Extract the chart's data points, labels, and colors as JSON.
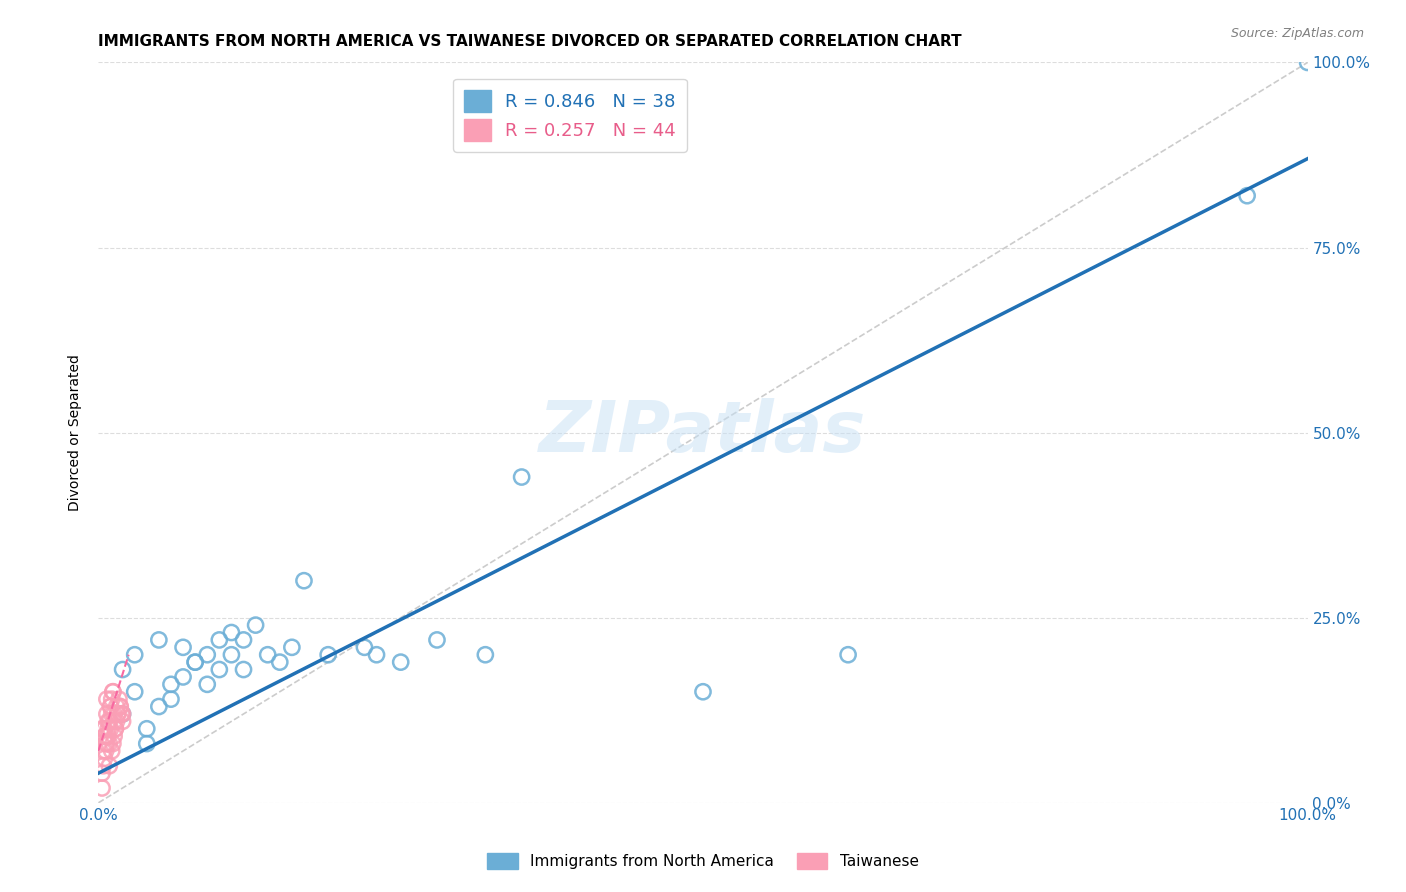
{
  "title": "IMMIGRANTS FROM NORTH AMERICA VS TAIWANESE DIVORCED OR SEPARATED CORRELATION CHART",
  "source": "Source: ZipAtlas.com",
  "xlabel": "",
  "ylabel": "Divorced or Separated",
  "xlim": [
    0.0,
    1.0
  ],
  "ylim": [
    0.0,
    1.0
  ],
  "ytick_positions": [
    0.0,
    0.25,
    0.5,
    0.75,
    1.0
  ],
  "watermark": "ZIPatlas",
  "blue_R": 0.846,
  "blue_N": 38,
  "pink_R": 0.257,
  "pink_N": 44,
  "blue_color": "#6baed6",
  "pink_color": "#fa9fb5",
  "blue_line_color": "#2171b5",
  "pink_line_color": "#f768a1",
  "pink_text_color": "#e85d8a",
  "diagonal_color": "#cccccc",
  "grid_color": "#dddddd",
  "blue_scatter_x": [
    0.02,
    0.03,
    0.04,
    0.05,
    0.06,
    0.02,
    0.03,
    0.05,
    0.07,
    0.08,
    0.09,
    0.1,
    0.11,
    0.12,
    0.13,
    0.04,
    0.06,
    0.07,
    0.08,
    0.09,
    0.1,
    0.11,
    0.12,
    0.14,
    0.15,
    0.16,
    0.17,
    0.19,
    0.22,
    0.23,
    0.25,
    0.28,
    0.32,
    0.35,
    0.5,
    0.62,
    0.95,
    1.0
  ],
  "blue_scatter_y": [
    0.12,
    0.15,
    0.1,
    0.13,
    0.16,
    0.18,
    0.2,
    0.22,
    0.21,
    0.19,
    0.2,
    0.22,
    0.23,
    0.22,
    0.24,
    0.08,
    0.14,
    0.17,
    0.19,
    0.16,
    0.18,
    0.2,
    0.18,
    0.2,
    0.19,
    0.21,
    0.3,
    0.2,
    0.21,
    0.2,
    0.19,
    0.22,
    0.2,
    0.44,
    0.15,
    0.2,
    0.82,
    1.0
  ],
  "pink_scatter_x": [
    0.005,
    0.007,
    0.009,
    0.01,
    0.012,
    0.008,
    0.006,
    0.011,
    0.013,
    0.004,
    0.003,
    0.015,
    0.018,
    0.02,
    0.005,
    0.007,
    0.009,
    0.01,
    0.012,
    0.014,
    0.016,
    0.006,
    0.008,
    0.011,
    0.013,
    0.015,
    0.017,
    0.019,
    0.004,
    0.006,
    0.008,
    0.01,
    0.012,
    0.014,
    0.016,
    0.018,
    0.02,
    0.003,
    0.005,
    0.007,
    0.009,
    0.011,
    0.013,
    0.003
  ],
  "pink_scatter_y": [
    0.1,
    0.12,
    0.08,
    0.13,
    0.15,
    0.11,
    0.09,
    0.14,
    0.12,
    0.07,
    0.1,
    0.11,
    0.13,
    0.12,
    0.09,
    0.14,
    0.11,
    0.13,
    0.15,
    0.1,
    0.12,
    0.08,
    0.1,
    0.12,
    0.11,
    0.13,
    0.14,
    0.12,
    0.05,
    0.07,
    0.09,
    0.1,
    0.08,
    0.1,
    0.12,
    0.13,
    0.11,
    0.04,
    0.06,
    0.08,
    0.05,
    0.07,
    0.09,
    0.02
  ],
  "blue_trendline_x": [
    0.0,
    1.0
  ],
  "blue_trendline_y": [
    0.04,
    0.87
  ],
  "pink_trendline_x": [
    0.0,
    0.025
  ],
  "pink_trendline_y": [
    0.07,
    0.2
  ],
  "title_fontsize": 11,
  "label_fontsize": 10,
  "tick_fontsize": 11,
  "legend_fontsize": 13
}
